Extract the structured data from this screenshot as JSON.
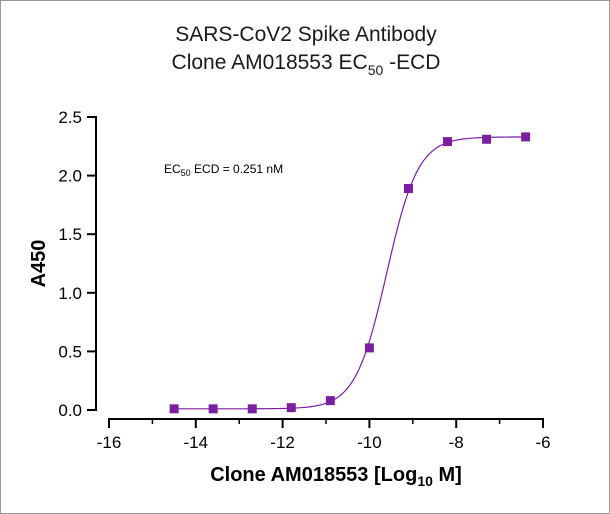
{
  "title": {
    "line1": "SARS-CoV2 Spike Antibody",
    "line2_prefix": "Clone AM018553 EC",
    "line2_sub": "50",
    "line2_suffix": " -ECD"
  },
  "annotation": {
    "prefix": "EC",
    "sub": "50",
    "suffix": " ECD = 0.251 nM"
  },
  "colors": {
    "series": "#7b1fa2",
    "axis": "#000000"
  },
  "chart_data": {
    "type": "scatter",
    "x_axis": {
      "label_prefix": "Clone AM018553 [Log",
      "label_sub": "10",
      "label_suffix": " M]",
      "range": [
        -16,
        -6
      ],
      "ticks": [
        -16,
        -14,
        -12,
        -10,
        -8,
        -6
      ],
      "minor_ticks": [
        -15,
        -13,
        -11,
        -9,
        -7
      ]
    },
    "y_axis": {
      "label": "A450",
      "range": [
        0,
        2.5
      ],
      "ticks": [
        0.0,
        0.5,
        1.0,
        1.5,
        2.0,
        2.5
      ],
      "tick_labels": [
        "0.0",
        "0.5",
        "1.0",
        "1.5",
        "2.0",
        "2.5"
      ]
    },
    "grid": false,
    "series": [
      {
        "marker": "square",
        "points": [
          {
            "x": -14.5,
            "y": 0.01
          },
          {
            "x": -13.6,
            "y": 0.01
          },
          {
            "x": -12.7,
            "y": 0.01
          },
          {
            "x": -11.8,
            "y": 0.02
          },
          {
            "x": -10.9,
            "y": 0.08
          },
          {
            "x": -10.0,
            "y": 0.53
          },
          {
            "x": -9.1,
            "y": 1.89
          },
          {
            "x": -8.2,
            "y": 2.29
          },
          {
            "x": -7.3,
            "y": 2.31
          },
          {
            "x": -6.4,
            "y": 2.33
          }
        ],
        "fit": {
          "model": "4PL",
          "bottom": 0.01,
          "top": 2.33,
          "log_ec50": -9.6,
          "hill_slope": 1.2
        }
      }
    ]
  }
}
